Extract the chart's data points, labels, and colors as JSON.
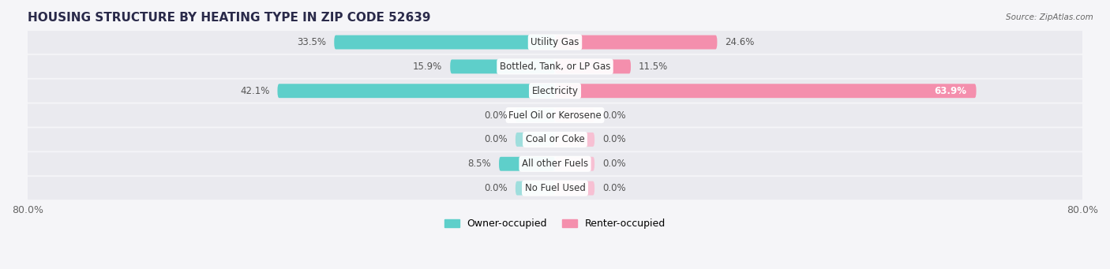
{
  "title": "HOUSING STRUCTURE BY HEATING TYPE IN ZIP CODE 52639",
  "source": "Source: ZipAtlas.com",
  "categories": [
    "Utility Gas",
    "Bottled, Tank, or LP Gas",
    "Electricity",
    "Fuel Oil or Kerosene",
    "Coal or Coke",
    "All other Fuels",
    "No Fuel Used"
  ],
  "owner_values": [
    33.5,
    15.9,
    42.1,
    0.0,
    0.0,
    8.5,
    0.0
  ],
  "renter_values": [
    24.6,
    11.5,
    63.9,
    0.0,
    0.0,
    0.0,
    0.0
  ],
  "owner_color": "#5ECFCA",
  "renter_color": "#F48FAD",
  "owner_color_light": "#9FDEDD",
  "renter_color_light": "#F7C0D3",
  "owner_label": "Owner-occupied",
  "renter_label": "Renter-occupied",
  "xlim": [
    -80,
    80
  ],
  "row_bg_color": "#EAEAEF",
  "fig_bg_color": "#F5F5F8",
  "title_fontsize": 11,
  "val_fontsize": 8.5,
  "cat_fontsize": 8.5,
  "bar_height": 0.58,
  "zero_stub": 6.0,
  "figsize": [
    14.06,
    3.41
  ],
  "dpi": 100
}
